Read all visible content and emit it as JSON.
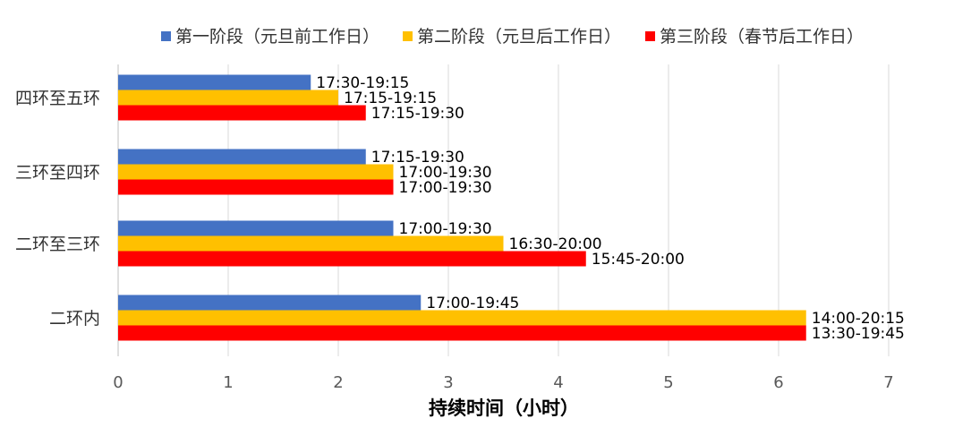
{
  "chart_data": {
    "type": "bar",
    "orientation": "horizontal",
    "title": "",
    "xlabel": "持续时间（小时）",
    "ylabel": "",
    "xlim": [
      0,
      7
    ],
    "xticks": [
      0,
      1,
      2,
      3,
      4,
      5,
      6,
      7
    ],
    "grid": "vertical",
    "legend_position": "top",
    "categories": [
      "四环至五环",
      "三环至四环",
      "二环至三环",
      "二环内"
    ],
    "series": [
      {
        "name": "第一阶段（元旦前工作日）",
        "color": "#4472C4",
        "values": [
          1.75,
          2.25,
          2.5,
          2.75
        ],
        "labels": [
          "17:30-19:15",
          "17:15-19:30",
          "17:00-19:30",
          "17:00-19:45"
        ]
      },
      {
        "name": "第二阶段（元旦后工作日）",
        "color": "#FFC000",
        "values": [
          2.0,
          2.5,
          3.5,
          6.25
        ],
        "labels": [
          "17:15-19:15",
          "17:00-19:30",
          "16:30-20:00",
          "14:00-20:15"
        ]
      },
      {
        "name": "第三阶段（春节后工作日）",
        "color": "#FF0000",
        "values": [
          2.25,
          2.5,
          4.25,
          6.25
        ],
        "labels": [
          "17:15-19:30",
          "17:00-19:30",
          "15:45-20:00",
          "13:30-19:45"
        ]
      }
    ]
  }
}
